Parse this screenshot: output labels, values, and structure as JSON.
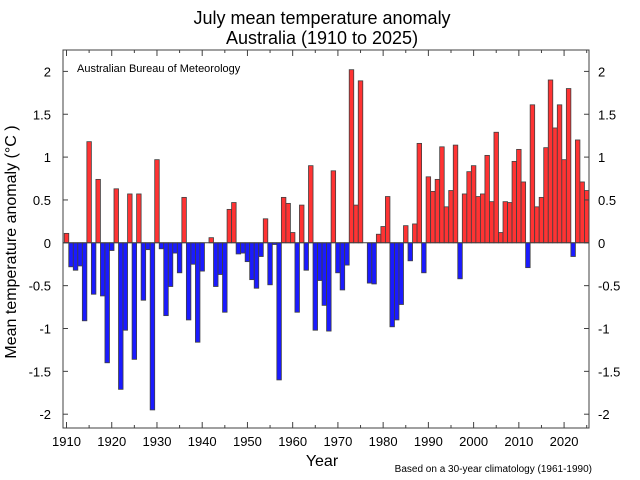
{
  "chart_data": {
    "type": "bar",
    "title": "July mean temperature anomaly",
    "subtitle": "Australia (1910 to 2025)",
    "xlabel": "Year",
    "ylabel": "Mean temperature anomaly (°C )",
    "annotation": "Australian Bureau of Meteorology",
    "footnote": "Based on a 30-year climatology (1961-1990)",
    "xlim": [
      1910,
      2025
    ],
    "ylim": [
      -2.2,
      2.2
    ],
    "x_ticks": [
      1910,
      1920,
      1930,
      1940,
      1950,
      1960,
      1970,
      1980,
      1990,
      2000,
      2010,
      2020
    ],
    "y_ticks": [
      2,
      1.5,
      1,
      0.5,
      0,
      -0.5,
      -1,
      -1.5,
      -2
    ],
    "y_tick_labels": [
      "2",
      "1.5",
      "1",
      "0.5",
      "0",
      "-0.5",
      "-1",
      "-1.5",
      "-2"
    ],
    "colors": {
      "positive": "#ff3333",
      "negative": "#1a1aff",
      "outline": "#404040"
    },
    "grid": false,
    "start_year": 1910,
    "values": [
      0.11,
      -0.28,
      -0.32,
      -0.27,
      -0.91,
      1.18,
      -0.6,
      0.74,
      -0.62,
      -1.4,
      -0.09,
      0.63,
      -1.71,
      -1.02,
      0.57,
      -1.36,
      0.57,
      -0.67,
      -0.08,
      -1.95,
      0.97,
      -0.07,
      -0.85,
      -0.51,
      -0.12,
      -0.35,
      0.53,
      -0.9,
      -0.25,
      -1.16,
      -0.33,
      0.0,
      0.06,
      -0.51,
      -0.37,
      -0.81,
      0.39,
      0.47,
      -0.13,
      -0.12,
      -0.22,
      -0.43,
      -0.53,
      -0.16,
      0.28,
      -0.49,
      -0.02,
      -1.6,
      0.53,
      0.46,
      0.12,
      -0.81,
      0.44,
      -0.32,
      0.9,
      -1.02,
      -0.44,
      -0.73,
      -1.03,
      0.84,
      -0.35,
      -0.55,
      -0.26,
      2.02,
      0.44,
      1.89,
      0.0,
      -0.47,
      -0.48,
      0.1,
      0.19,
      0.54,
      -0.98,
      -0.9,
      -0.72,
      0.2,
      -0.21,
      0.22,
      1.16,
      -0.35,
      0.77,
      0.6,
      0.74,
      1.12,
      0.42,
      0.61,
      1.14,
      -0.42,
      0.57,
      0.83,
      0.9,
      0.54,
      0.57,
      1.02,
      0.48,
      1.29,
      0.12,
      0.48,
      0.47,
      0.95,
      1.09,
      0.71,
      -0.29,
      1.61,
      0.42,
      0.53,
      1.11,
      1.9,
      1.34,
      1.61,
      0.97,
      1.8,
      -0.16,
      1.2,
      0.71,
      0.61
    ]
  }
}
